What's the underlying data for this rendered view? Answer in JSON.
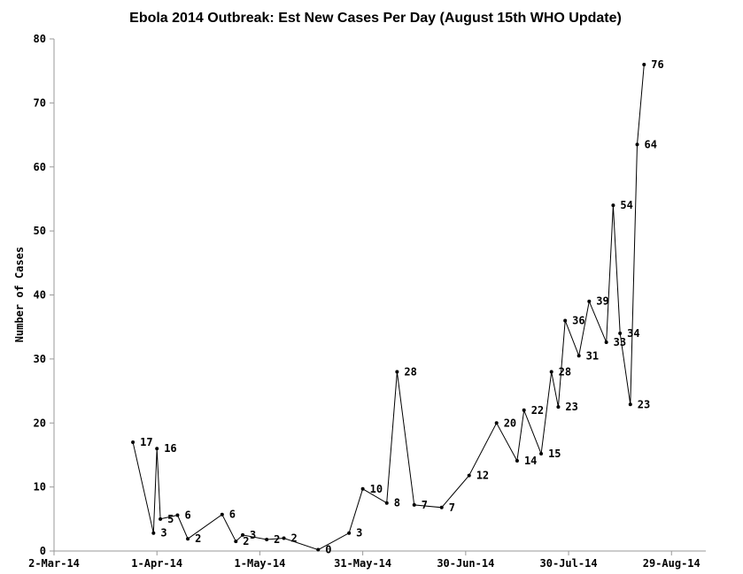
{
  "chart_data": {
    "type": "line",
    "title": "Ebola 2014 Outbreak: Est New Cases Per Day (August 15th WHO Update)",
    "xlabel": "",
    "ylabel": "Number of Cases",
    "ylim": [
      0,
      80
    ],
    "xlim": [
      "2014-03-02",
      "2014-09-08"
    ],
    "yticks": [
      0,
      10,
      20,
      30,
      40,
      50,
      60,
      70,
      80
    ],
    "xticks": [
      {
        "date": "2014-03-02",
        "label": "2-Mar-14"
      },
      {
        "date": "2014-04-01",
        "label": "1-Apr-14"
      },
      {
        "date": "2014-05-01",
        "label": "1-May-14"
      },
      {
        "date": "2014-05-31",
        "label": "31-May-14"
      },
      {
        "date": "2014-06-30",
        "label": "30-Jun-14"
      },
      {
        "date": "2014-07-30",
        "label": "30-Jul-14"
      },
      {
        "date": "2014-08-29",
        "label": "29-Aug-14"
      }
    ],
    "grid": false,
    "series": [
      {
        "points": [
          {
            "x": "2014-03-25",
            "y": 17,
            "label": "17"
          },
          {
            "x": "2014-03-31",
            "y": 2.8,
            "label": "3"
          },
          {
            "x": "2014-04-01",
            "y": 16,
            "label": "16"
          },
          {
            "x": "2014-04-02",
            "y": 5,
            "label": "5"
          },
          {
            "x": "2014-04-07",
            "y": 5.6,
            "label": "6"
          },
          {
            "x": "2014-04-10",
            "y": 1.9,
            "label": "2"
          },
          {
            "x": "2014-04-20",
            "y": 5.7,
            "label": "6"
          },
          {
            "x": "2014-04-24",
            "y": 1.5,
            "label": "2"
          },
          {
            "x": "2014-04-26",
            "y": 2.5,
            "label": "3"
          },
          {
            "x": "2014-05-03",
            "y": 1.8,
            "label": "2"
          },
          {
            "x": "2014-05-08",
            "y": 2,
            "label": "2"
          },
          {
            "x": "2014-05-18",
            "y": 0.2,
            "label": "0"
          },
          {
            "x": "2014-05-27",
            "y": 2.8,
            "label": "3"
          },
          {
            "x": "2014-05-31",
            "y": 9.7,
            "label": "10"
          },
          {
            "x": "2014-06-07",
            "y": 7.5,
            "label": "8"
          },
          {
            "x": "2014-06-10",
            "y": 28,
            "label": "28"
          },
          {
            "x": "2014-06-15",
            "y": 7.2,
            "label": "7"
          },
          {
            "x": "2014-06-23",
            "y": 6.8,
            "label": "7"
          },
          {
            "x": "2014-07-01",
            "y": 11.8,
            "label": "12"
          },
          {
            "x": "2014-07-09",
            "y": 20,
            "label": "20"
          },
          {
            "x": "2014-07-15",
            "y": 14.1,
            "label": "14"
          },
          {
            "x": "2014-07-17",
            "y": 22,
            "label": "22"
          },
          {
            "x": "2014-07-22",
            "y": 15.2,
            "label": "15"
          },
          {
            "x": "2014-07-25",
            "y": 28,
            "label": "28"
          },
          {
            "x": "2014-07-27",
            "y": 22.5,
            "label": "23"
          },
          {
            "x": "2014-07-29",
            "y": 36,
            "label": "36"
          },
          {
            "x": "2014-08-02",
            "y": 30.5,
            "label": "31"
          },
          {
            "x": "2014-08-05",
            "y": 39,
            "label": "39"
          },
          {
            "x": "2014-08-10",
            "y": 32.6,
            "label": "33"
          },
          {
            "x": "2014-08-12",
            "y": 54,
            "label": "54"
          },
          {
            "x": "2014-08-14",
            "y": 34,
            "label": "34"
          },
          {
            "x": "2014-08-17",
            "y": 22.9,
            "label": "23"
          },
          {
            "x": "2014-08-19",
            "y": 63.5,
            "label": "64"
          },
          {
            "x": "2014-08-21",
            "y": 76,
            "label": "76"
          }
        ]
      }
    ]
  }
}
